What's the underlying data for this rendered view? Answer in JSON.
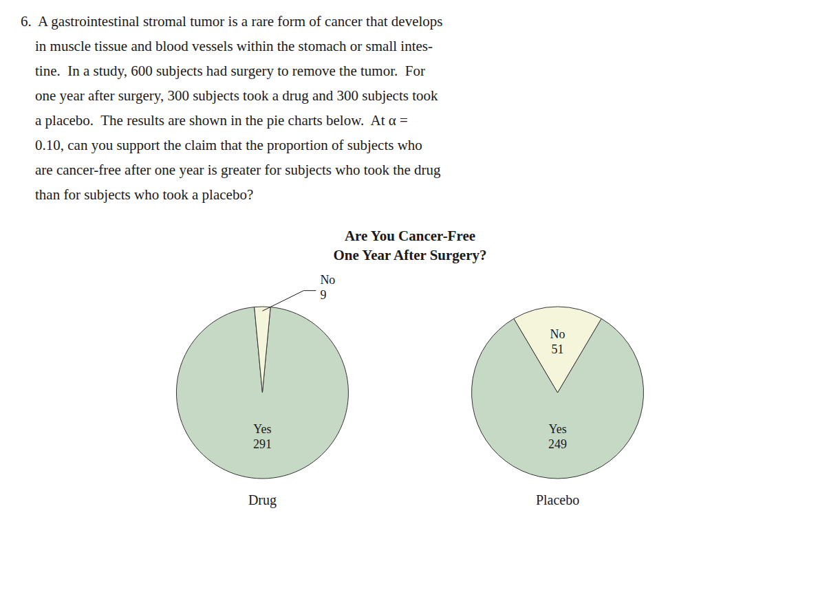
{
  "title": [
    "Are You Cancer-Free",
    "One Year After Surgery?"
  ],
  "paragraph": [
    "6.  A gastrointestinal stromal tumor is a rare form of cancer that develops",
    "    in muscle tissue and blood vessels within the stomach or small intes-",
    "    tine.  In a study, 600 subjects had surgery to remove the tumor.  For",
    "    one year after surgery, 300 subjects took a drug and 300 subjects took",
    "    a placebo.  The results are shown in the pie charts below.  At α =",
    "    0.10, can you support the claim that the proportion of subjects who",
    "    are cancer-free after one year is greater for subjects who took the drug",
    "    than for subjects who took a placebo?"
  ],
  "chart_data": [
    {
      "type": "pie",
      "title": "Drug",
      "categories": [
        "Yes",
        "No"
      ],
      "values": [
        291,
        9
      ],
      "colors": [
        "#c5d9c5",
        "#f5f5dc"
      ],
      "data_labels": true
    },
    {
      "type": "pie",
      "title": "Placebo",
      "categories": [
        "Yes",
        "No"
      ],
      "values": [
        249,
        51
      ],
      "colors": [
        "#c5d9c5",
        "#f5f5dc"
      ],
      "data_labels": true
    }
  ]
}
